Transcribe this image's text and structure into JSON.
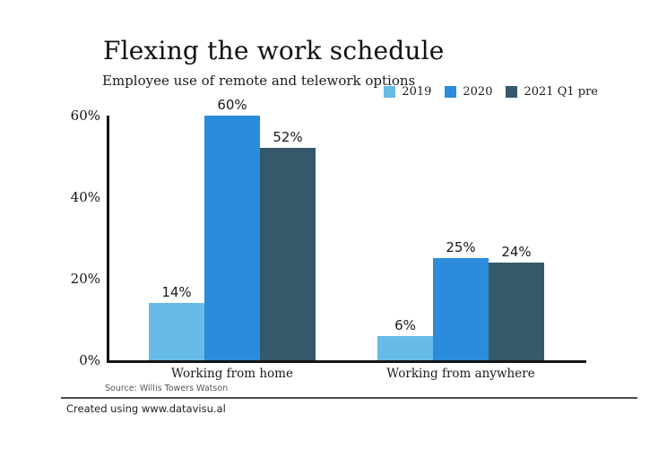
{
  "chart_data": {
    "type": "bar",
    "title": "Flexing the work schedule",
    "subtitle": "Employee use of remote and telework options",
    "categories": [
      "Working from home",
      "Working from anywhere"
    ],
    "series": [
      {
        "name": "2019",
        "color": "#66BCE4",
        "values": [
          14,
          6
        ]
      },
      {
        "name": "2020",
        "color": "#2A8CDB",
        "values": [
          60,
          25
        ]
      },
      {
        "name": "2021 Q1 pre",
        "color": "#35596B",
        "values": [
          52,
          24
        ]
      }
    ],
    "value_suffix": "%",
    "xlabel": "",
    "ylabel": "",
    "ylim": [
      0,
      60
    ],
    "yticks": [
      {
        "value": 0,
        "label": "0%"
      },
      {
        "value": 20,
        "label": "20%"
      },
      {
        "value": 40,
        "label": "40%"
      },
      {
        "value": 60,
        "label": "60%"
      }
    ],
    "grid": false,
    "legend_position": "top-right",
    "source": "Source: Willis Towers Watson"
  },
  "footer": {
    "attribution": "Created using www.datavisu.al"
  }
}
